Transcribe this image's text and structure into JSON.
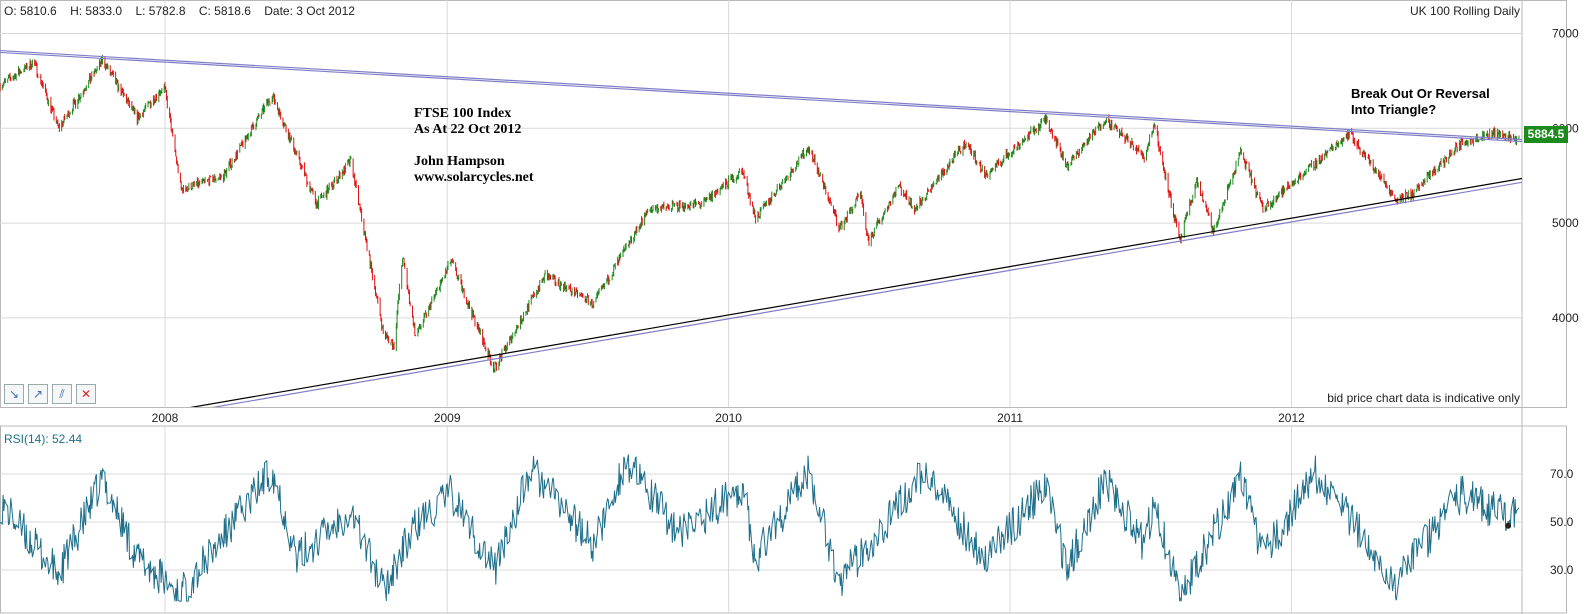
{
  "header": {
    "open": "O: 5810.6",
    "high": "H: 5833.0",
    "low": "L: 5782.8",
    "close": "C: 5818.6",
    "date": "Date: 3 Oct 2012",
    "instrument": "UK 100 Rolling Daily"
  },
  "annotations": {
    "line1": "FTSE 100 Index",
    "line2": "As At 22 Oct 2012",
    "line3": "John Hampson",
    "line4": "www.solarcycles.net",
    "break1": "Break Out Or Reversal",
    "break2": "Into Triangle?"
  },
  "disclaimer": "bid price chart data is indicative only",
  "rsi_label": "RSI(14): 52.44",
  "last_price": "5884.5",
  "toolbar": {
    "tools": [
      {
        "name": "trend-down-tool",
        "icon": "arrow-down-right-icon",
        "glyph": "↘"
      },
      {
        "name": "trend-up-tool",
        "icon": "arrow-up-right-icon",
        "glyph": "↗"
      },
      {
        "name": "parallel-lines-tool",
        "icon": "parallel-lines-icon",
        "glyph": "⫽"
      },
      {
        "name": "delete-tool",
        "icon": "close-icon",
        "glyph": "✕"
      }
    ]
  },
  "colors": {
    "up_candle": "#1f8a1f",
    "down_candle": "#e01010",
    "rsi_line": "#1f6f8b",
    "trend_upper": "#7f7fc8",
    "trend_lower_black": "#000000",
    "trend_lower_blue": "#7f7fc8",
    "grid": "#d9d9d9"
  },
  "chart_data": [
    {
      "type": "candlestick",
      "title": "UK 100 Rolling Daily",
      "x_tick_labels": [
        "2008",
        "2009",
        "2010",
        "2011",
        "2012"
      ],
      "y_tick_labels": [
        "7000",
        "6000",
        "5000",
        "4000"
      ],
      "ylim": [
        3060,
        7100
      ],
      "xlim": [
        "2007-06-01",
        "2012-10-26"
      ],
      "grid": true,
      "last_value": 5884.5,
      "price_path": [
        [
          "2007-06-01",
          6450
        ],
        [
          "2007-07-15",
          6700
        ],
        [
          "2007-08-16",
          6000
        ],
        [
          "2007-10-12",
          6720
        ],
        [
          "2007-11-26",
          6100
        ],
        [
          "2007-12-31",
          6450
        ],
        [
          "2008-01-22",
          5350
        ],
        [
          "2008-03-17",
          5500
        ],
        [
          "2008-05-19",
          6350
        ],
        [
          "2008-07-16",
          5200
        ],
        [
          "2008-08-29",
          5650
        ],
        [
          "2008-10-10",
          3850
        ],
        [
          "2008-10-24",
          3700
        ],
        [
          "2008-11-04",
          4650
        ],
        [
          "2008-11-21",
          3800
        ],
        [
          "2009-01-06",
          4600
        ],
        [
          "2009-03-03",
          3460
        ],
        [
          "2009-05-08",
          4450
        ],
        [
          "2009-07-10",
          4150
        ],
        [
          "2009-09-20",
          5150
        ],
        [
          "2009-11-27",
          5200
        ],
        [
          "2010-01-19",
          5550
        ],
        [
          "2010-02-05",
          5050
        ],
        [
          "2010-04-15",
          5800
        ],
        [
          "2010-05-25",
          4950
        ],
        [
          "2010-06-21",
          5300
        ],
        [
          "2010-07-01",
          4800
        ],
        [
          "2010-08-09",
          5400
        ],
        [
          "2010-08-31",
          5150
        ],
        [
          "2010-11-05",
          5850
        ],
        [
          "2010-11-30",
          5500
        ],
        [
          "2011-02-17",
          6100
        ],
        [
          "2011-03-16",
          5600
        ],
        [
          "2011-05-04",
          6100
        ],
        [
          "2011-06-24",
          5700
        ],
        [
          "2011-07-07",
          6050
        ],
        [
          "2011-08-09",
          4800
        ],
        [
          "2011-08-31",
          5450
        ],
        [
          "2011-09-22",
          4900
        ],
        [
          "2011-10-27",
          5750
        ],
        [
          "2011-11-25",
          5150
        ],
        [
          "2012-03-16",
          5950
        ],
        [
          "2012-05-16",
          5250
        ],
        [
          "2012-06-05",
          5300
        ],
        [
          "2012-08-09",
          5850
        ],
        [
          "2012-09-17",
          5950
        ],
        [
          "2012-10-22",
          5884
        ]
      ],
      "trendlines": [
        {
          "name": "upper resistance 1",
          "from": [
            "2007-06-01",
            6820
          ],
          "to": [
            "2012-10-26",
            5880
          ]
        },
        {
          "name": "upper resistance 2",
          "from": [
            "2007-06-01",
            6800
          ],
          "to": [
            "2012-10-26",
            5860
          ]
        },
        {
          "name": "lower support black",
          "from": [
            "2007-10-01",
            2880
          ],
          "to": [
            "2012-10-26",
            5470
          ]
        },
        {
          "name": "lower support blue",
          "from": [
            "2007-10-01",
            2840
          ],
          "to": [
            "2012-10-26",
            5430
          ]
        }
      ]
    },
    {
      "type": "line",
      "title": "RSI(14): 52.44",
      "y_tick_labels": [
        "70.0",
        "50.0",
        "30.0"
      ],
      "ylim": [
        15,
        90
      ],
      "grid": true,
      "last_value": 52.44,
      "rsi_path": [
        [
          "2007-06-01",
          58
        ],
        [
          "2007-08-16",
          28
        ],
        [
          "2007-10-12",
          68
        ],
        [
          "2007-11-26",
          35
        ],
        [
          "2008-01-22",
          20
        ],
        [
          "2008-05-19",
          72
        ],
        [
          "2008-06-20",
          35
        ],
        [
          "2008-08-29",
          55
        ],
        [
          "2008-10-10",
          22
        ],
        [
          "2008-11-20",
          48
        ],
        [
          "2009-01-06",
          62
        ],
        [
          "2009-03-03",
          30
        ],
        [
          "2009-04-20",
          72
        ],
        [
          "2009-07-10",
          40
        ],
        [
          "2009-08-20",
          75
        ],
        [
          "2009-10-30",
          45
        ],
        [
          "2010-01-19",
          65
        ],
        [
          "2010-02-05",
          35
        ],
        [
          "2010-04-15",
          72
        ],
        [
          "2010-05-25",
          25
        ],
        [
          "2010-09-10",
          70
        ],
        [
          "2010-11-30",
          35
        ],
        [
          "2011-02-17",
          65
        ],
        [
          "2011-03-16",
          30
        ],
        [
          "2011-05-04",
          68
        ],
        [
          "2011-06-24",
          40
        ],
        [
          "2011-07-07",
          60
        ],
        [
          "2011-08-09",
          18
        ],
        [
          "2011-10-27",
          68
        ],
        [
          "2011-11-25",
          35
        ],
        [
          "2012-02-01",
          70
        ],
        [
          "2012-05-16",
          25
        ],
        [
          "2012-08-09",
          62
        ],
        [
          "2012-09-17",
          55
        ],
        [
          "2012-10-22",
          52
        ]
      ]
    }
  ]
}
